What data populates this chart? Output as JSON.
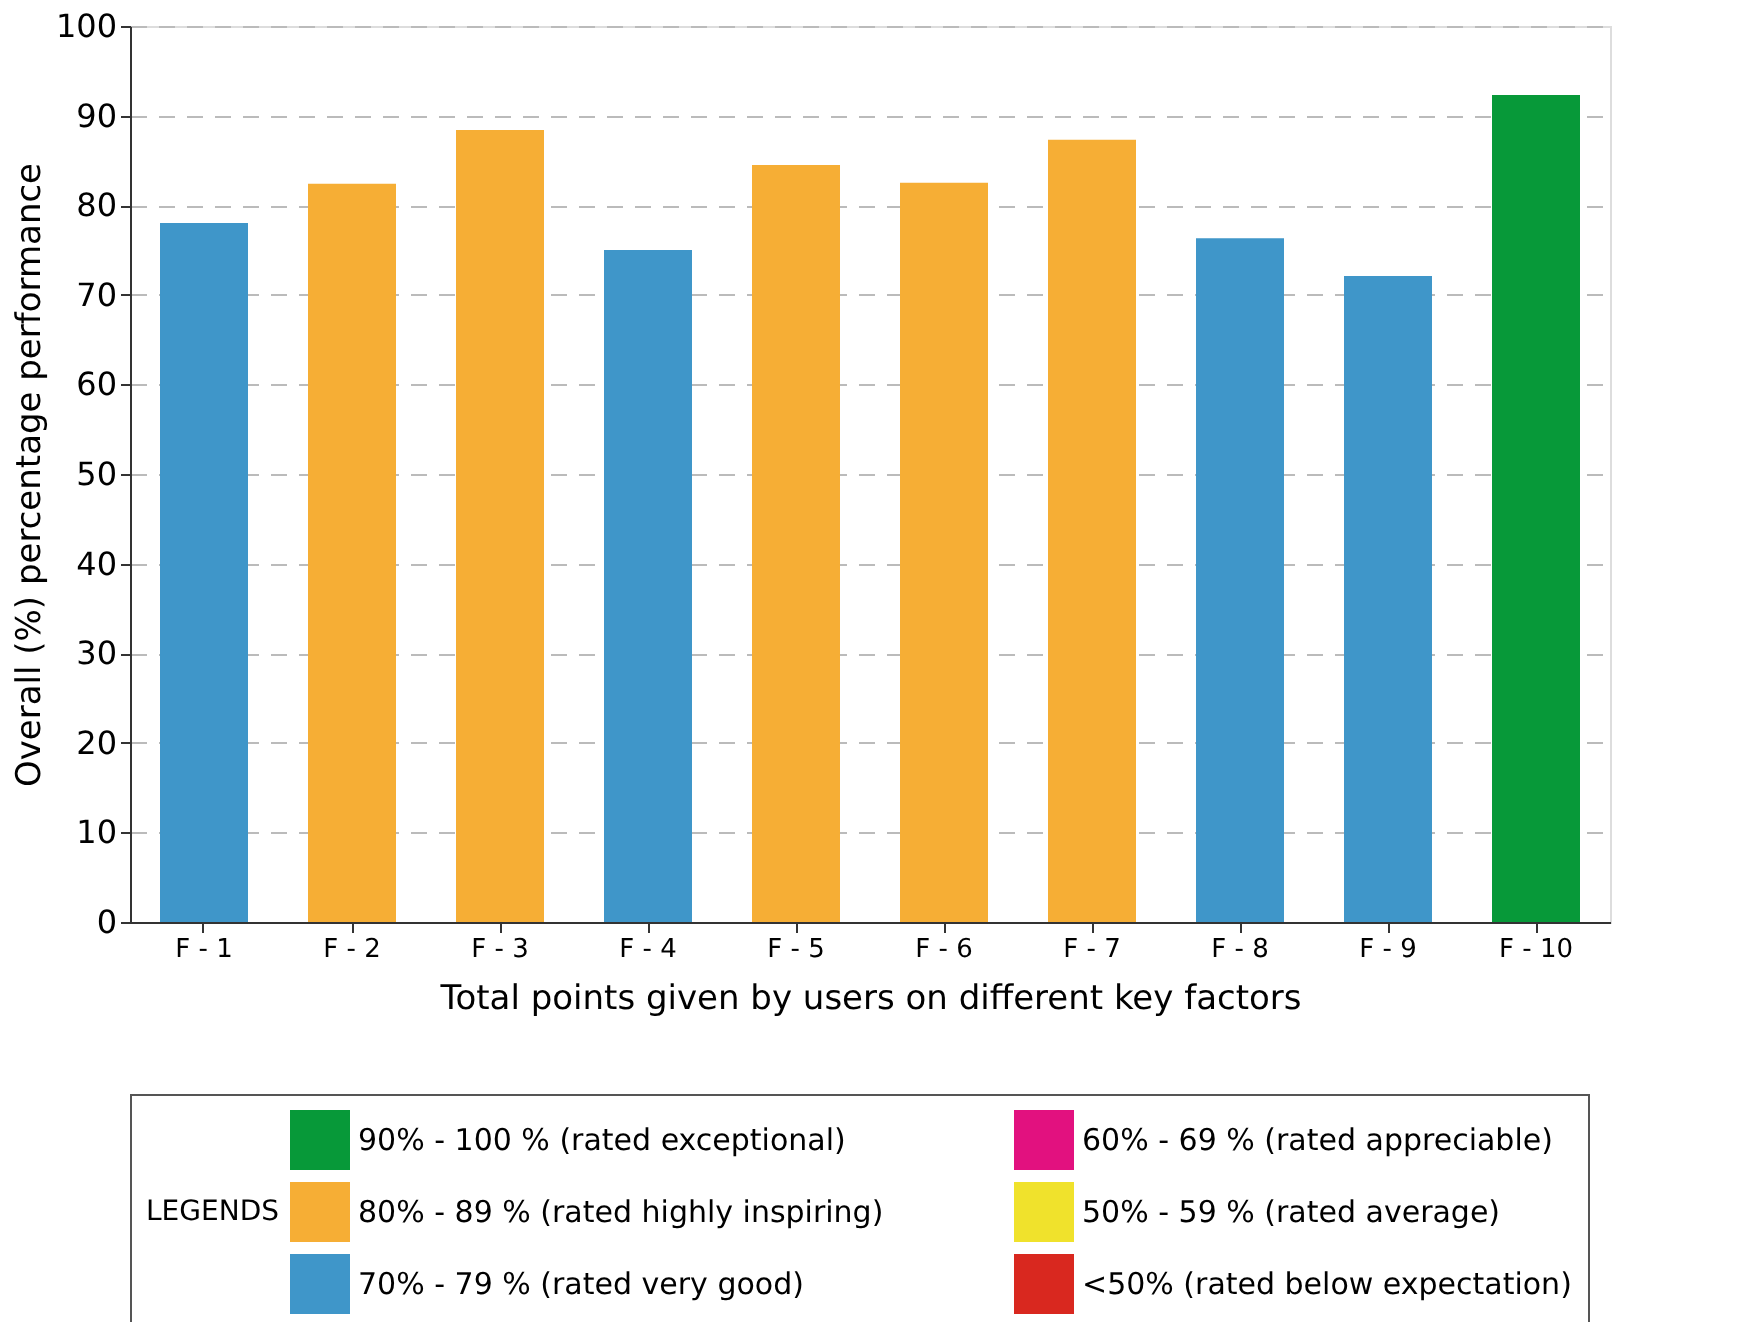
{
  "chart_data": {
    "type": "bar",
    "xlabel": "Total points given by users on different key factors",
    "ylabel": "Overall (%) percentage performance",
    "legend_title": "LEGENDS",
    "categories": [
      "F - 1",
      "F - 2",
      "F - 3",
      "F - 4",
      "F - 5",
      "F - 6",
      "F - 7",
      "F - 8",
      "F - 9",
      "F - 10"
    ],
    "series": [
      {
        "name": "90%  - 100 % (rated exceptional)",
        "color": "#079939",
        "values": [
          null,
          null,
          null,
          null,
          null,
          null,
          null,
          null,
          null,
          92.3
        ]
      },
      {
        "name": "80%  - 89 % (rated highly inspiring)",
        "color": "#f6ae35",
        "values": [
          null,
          82.4,
          88.4,
          null,
          84.5,
          82.5,
          87.3,
          null,
          null,
          null
        ]
      },
      {
        "name": "70%  - 79 % (rated very good)",
        "color": "#3f96c9",
        "values": [
          78,
          null,
          null,
          75,
          null,
          null,
          null,
          76.3,
          72.1,
          null
        ]
      },
      {
        "name": "60%  - 69 % (rated appreciable)",
        "color": "#e2117f",
        "values": [
          null,
          null,
          null,
          null,
          null,
          null,
          null,
          null,
          null,
          null
        ]
      },
      {
        "name": "50%  - 59 % (rated average)",
        "color": "#f0e22c",
        "values": [
          null,
          null,
          null,
          null,
          null,
          null,
          null,
          null,
          null,
          null
        ]
      },
      {
        "name": "<50% (rated below expectation)",
        "color": "#d9281f",
        "values": [
          null,
          null,
          null,
          null,
          null,
          null,
          null,
          null,
          null,
          null
        ]
      }
    ],
    "ylim": [
      0,
      100
    ],
    "yticks": [
      0,
      10,
      20,
      30,
      40,
      50,
      60,
      70,
      80,
      90,
      100
    ],
    "grid": "y",
    "legend": "bottom"
  }
}
